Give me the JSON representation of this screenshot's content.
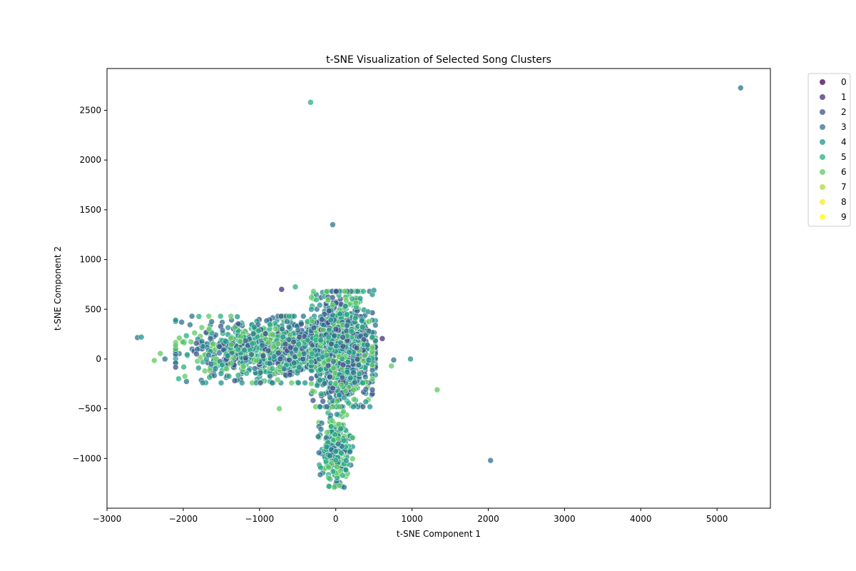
{
  "chart_data": {
    "type": "scatter",
    "title": "t-SNE Visualization of Selected Song Clusters",
    "xlabel": "t-SNE Component 1",
    "ylabel": "t-SNE Component 2",
    "xlim": [
      -3000,
      5700
    ],
    "ylim": [
      -1500,
      2920
    ],
    "x_ticks": [
      -3000,
      -2000,
      -1000,
      0,
      1000,
      2000,
      3000,
      4000,
      5000
    ],
    "x_tick_labels": [
      "−3000",
      "−2000",
      "−1000",
      "0",
      "1000",
      "2000",
      "3000",
      "4000",
      "5000"
    ],
    "y_ticks": [
      -1000,
      -500,
      0,
      500,
      1000,
      1500,
      2000,
      2500
    ],
    "y_tick_labels": [
      "−1000",
      "−500",
      "0",
      "500",
      "1000",
      "1500",
      "2000",
      "2500"
    ],
    "grid": false,
    "legend_position": "outside-upper-right",
    "marker_opacity": 0.75,
    "series": [
      {
        "name": "0",
        "color": "#440154"
      },
      {
        "name": "1",
        "color": "#472d7b"
      },
      {
        "name": "2",
        "color": "#3b528b"
      },
      {
        "name": "3",
        "color": "#2c728e"
      },
      {
        "name": "4",
        "color": "#21918c"
      },
      {
        "name": "5",
        "color": "#28ae80"
      },
      {
        "name": "6",
        "color": "#5ec962"
      },
      {
        "name": "7",
        "color": "#addc30"
      },
      {
        "name": "8",
        "color": "#fde725"
      },
      {
        "name": "9",
        "color": "#ffff00"
      }
    ],
    "points": [
      {
        "series": "3",
        "x": 5310,
        "y": 2725
      },
      {
        "series": "5",
        "x": -330,
        "y": 2580
      },
      {
        "series": "3",
        "x": -40,
        "y": 1350
      },
      {
        "series": "1",
        "x": -710,
        "y": 700
      },
      {
        "series": "5",
        "x": -530,
        "y": 725
      },
      {
        "series": "1",
        "x": 610,
        "y": 205
      },
      {
        "series": "3",
        "x": 2030,
        "y": -1020
      },
      {
        "series": "6",
        "x": 1330,
        "y": -310
      },
      {
        "series": "4",
        "x": 980,
        "y": 0
      },
      {
        "series": "3",
        "x": 760,
        "y": -10
      },
      {
        "series": "6",
        "x": 730,
        "y": -70
      },
      {
        "series": "3",
        "x": -2600,
        "y": 215
      },
      {
        "series": "4",
        "x": -2550,
        "y": 220
      },
      {
        "series": "3",
        "x": -2240,
        "y": 0
      },
      {
        "series": "6",
        "x": -2380,
        "y": -15
      },
      {
        "series": "6",
        "x": -2300,
        "y": 55
      },
      {
        "series": "6",
        "x": -740,
        "y": -500
      },
      {
        "series": "3",
        "x": 110,
        "y": -1290
      },
      {
        "series": "6",
        "x": -20,
        "y": -1290
      },
      {
        "series": "5",
        "x": 90,
        "y": -1170
      },
      {
        "series": "3",
        "x": -230,
        "y": -780
      },
      {
        "series": "4",
        "x": 500,
        "y": 690
      }
    ],
    "dense_regions": [
      {
        "series": [
          "2",
          "3",
          "4",
          "5",
          "6"
        ],
        "x_range": [
          -2100,
          520
        ],
        "y_range": [
          -240,
          430
        ],
        "count": 1100
      },
      {
        "series": [
          "2",
          "3",
          "4",
          "5",
          "6"
        ],
        "x_range": [
          -320,
          480
        ],
        "y_range": [
          -480,
          680
        ],
        "count": 1400
      },
      {
        "series": [
          "3",
          "4",
          "5",
          "6"
        ],
        "x_range": [
          -220,
          220
        ],
        "y_range": [
          -1280,
          -480
        ],
        "count": 260
      }
    ]
  }
}
